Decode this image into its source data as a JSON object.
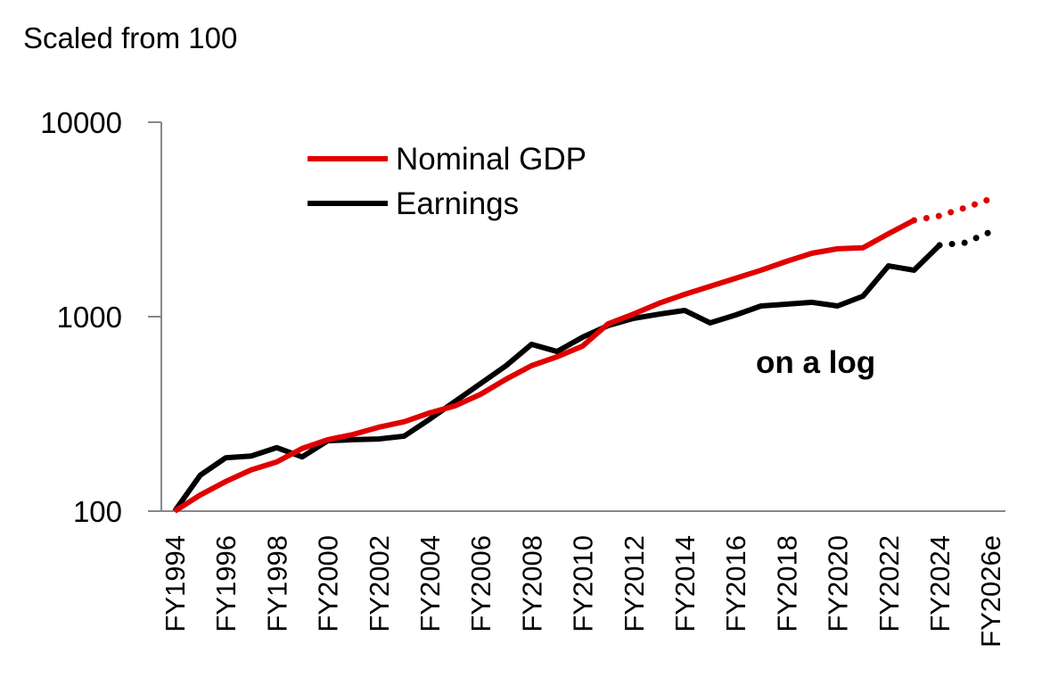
{
  "chart_data": {
    "type": "line",
    "title": "Scaled from 100",
    "annotation": "on a log",
    "y_scale": "log",
    "ylim": [
      100,
      10000
    ],
    "y_ticks": [
      "100",
      "1000",
      "10000"
    ],
    "y_tick_values": [
      100,
      1000,
      10000
    ],
    "x": [
      "FY1994",
      "FY1995",
      "FY1996",
      "FY1997",
      "FY1998",
      "FY1999",
      "FY2000",
      "FY2001",
      "FY2002",
      "FY2003",
      "FY2004",
      "FY2005",
      "FY2006",
      "FY2007",
      "FY2008",
      "FY2009",
      "FY2010",
      "FY2011",
      "FY2012",
      "FY2013",
      "FY2014",
      "FY2015",
      "FY2016",
      "FY2017",
      "FY2018",
      "FY2019",
      "FY2020",
      "FY2021",
      "FY2022",
      "FY2023",
      "FY2024",
      "FY2025e",
      "FY2026e"
    ],
    "x_tick_labels": [
      "FY1994",
      "FY1996",
      "FY1998",
      "FY2000",
      "FY2002",
      "FY2004",
      "FY2006",
      "FY2008",
      "FY2010",
      "FY2012",
      "FY2014",
      "FY2016",
      "FY2018",
      "FY2020",
      "FY2022",
      "FY2024",
      "FY2026e"
    ],
    "grid": false,
    "legend_placement": "top-left",
    "series": [
      {
        "name": "Nominal GDP",
        "color": "#e00000",
        "estimate_from": "FY2023",
        "values": [
          100,
          121,
          142,
          163,
          179,
          210,
          233,
          248,
          270,
          288,
          320,
          348,
          399,
          477,
          560,
          622,
          706,
          919,
          1032,
          1172,
          1302,
          1432,
          1575,
          1733,
          1925,
          2120,
          2235,
          2260,
          2670,
          3130,
          3300,
          3630,
          4030
        ]
      },
      {
        "name": "Earnings",
        "color": "#000000",
        "estimate_from": "FY2024",
        "values": [
          100,
          153,
          188,
          192,
          212,
          190,
          230,
          233,
          235,
          243,
          297,
          367,
          453,
          560,
          721,
          662,
          784,
          900,
          980,
          1030,
          1077,
          929,
          1020,
          1135,
          1160,
          1185,
          1135,
          1275,
          1825,
          1733,
          2330,
          2400,
          2730
        ]
      }
    ]
  }
}
